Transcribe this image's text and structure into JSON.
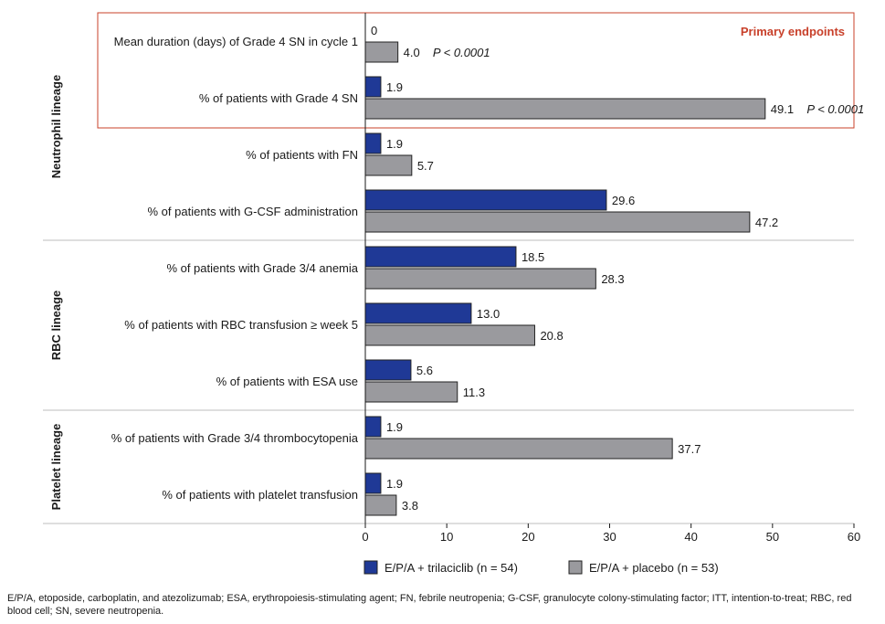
{
  "chart_data": {
    "type": "bar",
    "orientation": "horizontal",
    "xlim": [
      0,
      60
    ],
    "xticks": [
      0,
      10,
      20,
      30,
      40,
      50,
      60
    ],
    "legend": {
      "position": "bottom",
      "entries": [
        {
          "name": "E/P/A + trilaciclib (n = 54)",
          "color": "#1f3996"
        },
        {
          "name": "E/P/A + placebo (n = 53)",
          "color": "#9a9a9e"
        }
      ]
    },
    "series_colors": [
      "#1f3996",
      "#9a9a9e"
    ],
    "callout": {
      "label": "Primary endpoints",
      "color": "#c8402a",
      "covers": [
        "cat-1",
        "cat-2"
      ]
    },
    "groups": [
      {
        "id": "neutrophil",
        "label": "Neutrophil lineage",
        "categories": [
          1,
          2,
          3,
          4
        ]
      },
      {
        "id": "rbc",
        "label": "RBC lineage",
        "categories": [
          5,
          6,
          7
        ]
      },
      {
        "id": "platelet",
        "label": "Platelet lineage",
        "categories": [
          8,
          9
        ]
      }
    ],
    "categories": [
      {
        "id": 1,
        "label": "Mean duration (days) of Grade 4 SN in cycle 1",
        "values": [
          0,
          4.0
        ],
        "value_labels": [
          "0",
          "4.0"
        ],
        "pvalue": "P < 0.0001"
      },
      {
        "id": 2,
        "label": "% of patients with Grade 4 SN",
        "values": [
          1.9,
          49.1
        ],
        "value_labels": [
          "1.9",
          "49.1"
        ],
        "pvalue": "P < 0.0001"
      },
      {
        "id": 3,
        "label": "% of patients with FN",
        "values": [
          1.9,
          5.7
        ],
        "value_labels": [
          "1.9",
          "5.7"
        ]
      },
      {
        "id": 4,
        "label": "% of patients with G-CSF administration",
        "values": [
          29.6,
          47.2
        ],
        "value_labels": [
          "29.6",
          "47.2"
        ]
      },
      {
        "id": 5,
        "label": "% of patients with Grade 3/4 anemia",
        "values": [
          18.5,
          28.3
        ],
        "value_labels": [
          "18.5",
          "28.3"
        ]
      },
      {
        "id": 6,
        "label": "% of patients with RBC transfusion ≥ week 5",
        "values": [
          13.0,
          20.8
        ],
        "value_labels": [
          "13.0",
          "20.8"
        ]
      },
      {
        "id": 7,
        "label": "% of patients with ESA use",
        "values": [
          5.6,
          11.3
        ],
        "value_labels": [
          "5.6",
          "11.3"
        ]
      },
      {
        "id": 8,
        "label": "% of patients with Grade 3/4 thrombocytopenia",
        "values": [
          1.9,
          37.7
        ],
        "value_labels": [
          "1.9",
          "37.7"
        ]
      },
      {
        "id": 9,
        "label": "% of patients with platelet transfusion",
        "values": [
          1.9,
          3.8
        ],
        "value_labels": [
          "1.9",
          "3.8"
        ]
      }
    ]
  },
  "footnote": "E/P/A, etoposide, carboplatin, and atezolizumab; ESA, erythropoiesis-stimulating agent; FN, febrile neutropenia; G-CSF, granulocyte colony-stimulating factor; ITT, intention-to-treat; RBC, red blood cell; SN, severe neutropenia."
}
